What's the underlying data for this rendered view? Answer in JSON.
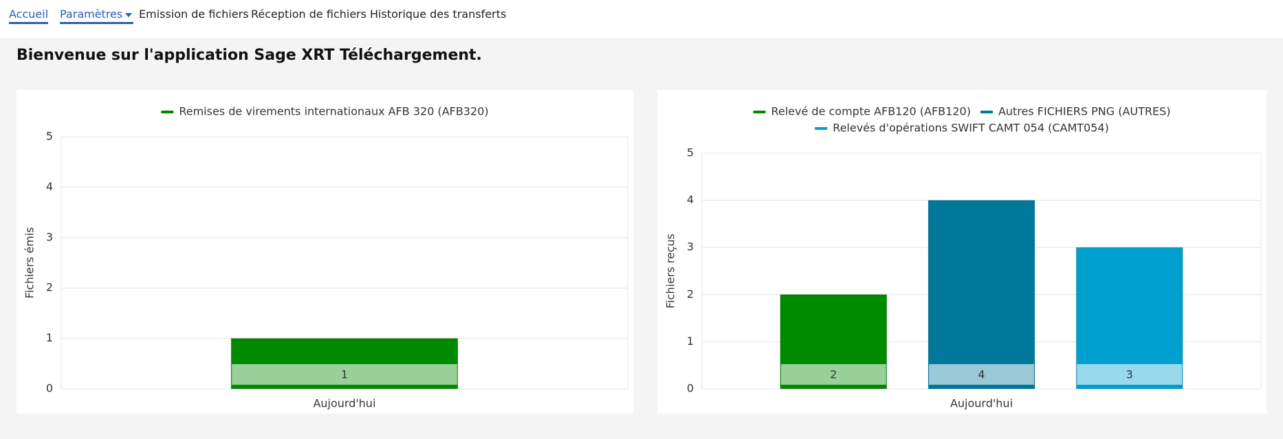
{
  "nav": [
    "Accueil",
    "Paramètres",
    "Emission de fichiers",
    "Réception de fichiers",
    "Historique des transferts"
  ],
  "heading": "Bienvenue sur l'application Sage XRT Téléchargement.",
  "chart_data": [
    {
      "type": "bar",
      "categories": [
        "Aujourd'hui"
      ],
      "ylabel": "Fichiers émis",
      "ylim": [
        0,
        5
      ],
      "yticks": [
        0,
        1,
        2,
        3,
        4,
        5
      ],
      "grid": true,
      "series": [
        {
          "name": "Remises de virements internationaux AFB 320 (AFB320)",
          "color": "#008a00",
          "values": [
            1
          ]
        }
      ]
    },
    {
      "type": "bar",
      "categories": [
        "Aujourd'hui"
      ],
      "ylabel": "Fichiers reçus",
      "ylim": [
        0,
        5
      ],
      "yticks": [
        0,
        1,
        2,
        3,
        4,
        5
      ],
      "grid": true,
      "series": [
        {
          "name": "Relevé de compte AFB120 (AFB120)",
          "color": "#008a00",
          "values": [
            2
          ]
        },
        {
          "name": "Autres FICHIERS PNG (AUTRES)",
          "color": "#00789c",
          "values": [
            4
          ]
        },
        {
          "name": "Relevés d'opérations SWIFT CAMT 054 (CAMT054)",
          "color": "#00a0ce",
          "values": [
            3
          ]
        }
      ]
    }
  ]
}
